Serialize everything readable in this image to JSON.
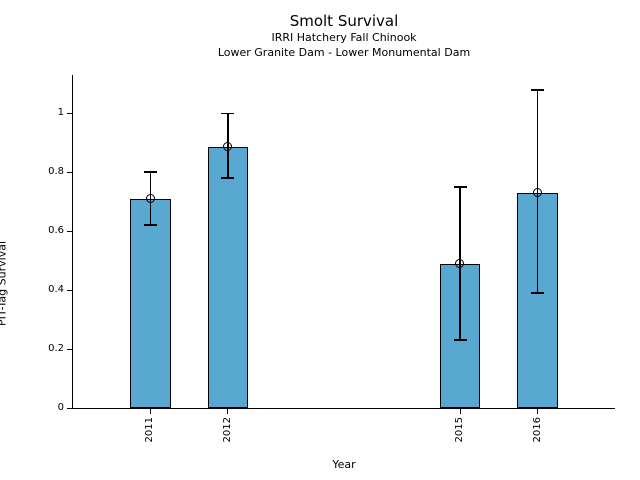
{
  "chart_data": {
    "type": "bar",
    "title": "Smolt Survival",
    "subtitle1": "IRRI Hatchery Fall Chinook",
    "subtitle2": "Lower Granite Dam - Lower Monumental Dam",
    "xlabel": "Year",
    "ylabel": "PIT-Tag Survival",
    "categories": [
      "2011",
      "2012",
      "2015",
      "2016"
    ],
    "x": [
      2011,
      2012,
      2015,
      2016
    ],
    "values": [
      0.71,
      0.885,
      0.49,
      0.73
    ],
    "error_low": [
      0.62,
      0.78,
      0.23,
      0.39
    ],
    "error_high": [
      0.8,
      1.0,
      0.75,
      1.08
    ],
    "xlim": [
      2010,
      2017
    ],
    "ylim": [
      0,
      1.13
    ],
    "yticks": [
      0,
      0.2,
      0.4,
      0.6,
      0.8,
      1
    ],
    "ytick_labels": [
      "0",
      "0.2",
      "0.4",
      "0.6",
      "0.8",
      "1"
    ],
    "bar_width_years": 0.52,
    "bar_color": "#58A8D2",
    "bar_edge_color": "#000000",
    "error_color": "#000000",
    "marker": "open-circle",
    "grid": false,
    "legend": null
  }
}
